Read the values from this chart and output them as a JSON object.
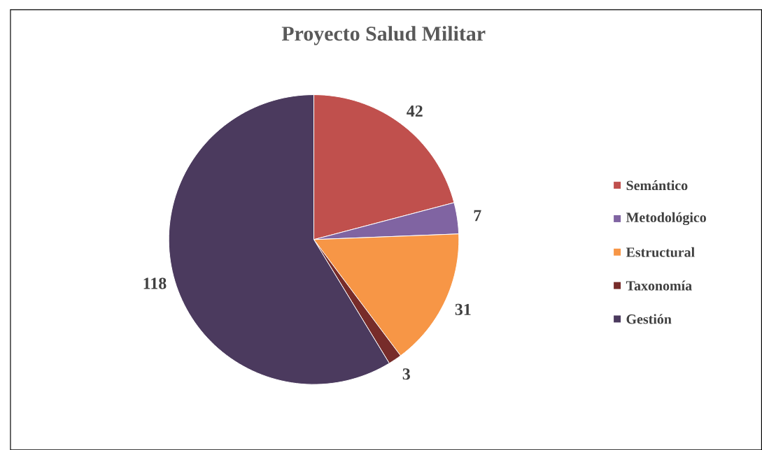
{
  "chart_data": {
    "type": "pie",
    "title": "Proyecto Salud Militar",
    "categories": [
      "Semántico",
      "Metodológico",
      "Estructural",
      "Taxonomía",
      "Gestión"
    ],
    "values": [
      42,
      7,
      31,
      3,
      118
    ],
    "colors": [
      "#c0504d",
      "#8064a2",
      "#f79646",
      "#772c2a",
      "#4b3a5e"
    ],
    "data_labels": true,
    "legend": "right"
  }
}
